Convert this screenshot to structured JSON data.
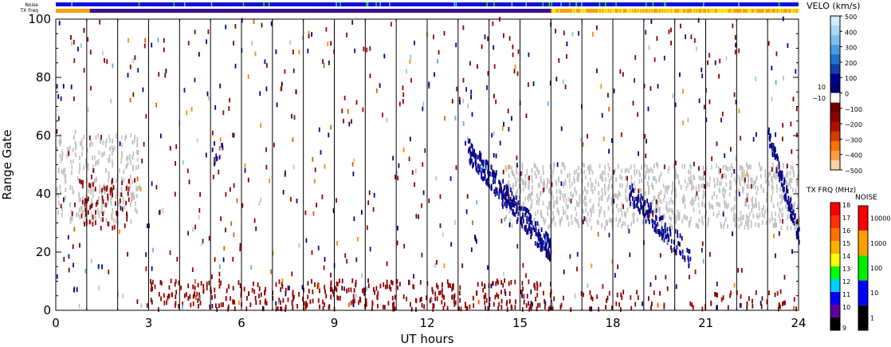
{
  "chart_data": {
    "type": "heatmap",
    "xlabel": "UT hours",
    "ylabel": "Range Gate",
    "x_ticks": [
      0,
      3,
      6,
      9,
      12,
      15,
      18,
      21,
      24
    ],
    "y_ticks": [
      0,
      20,
      40,
      60,
      80,
      100
    ],
    "xlim": [
      0,
      24
    ],
    "ylim": [
      0,
      100
    ],
    "vertical_lines_at_hours": [
      1,
      2,
      3,
      4,
      5,
      6,
      7,
      8,
      9,
      10,
      11,
      12,
      13,
      14,
      15,
      16,
      17,
      18,
      19,
      20,
      21,
      22,
      23
    ],
    "strips": {
      "noise_label": "Noise",
      "txfrq_label": "TX Freq"
    },
    "velocity_colorbar": {
      "title": "VELO (km/s)",
      "ticks": [
        500,
        400,
        300,
        200,
        100,
        10,
        0,
        -10,
        -100,
        -200,
        -300,
        -400,
        -500
      ],
      "tick_labels": [
        "500",
        "400",
        "300",
        "200",
        "100",
        "10",
        "0",
        "−10",
        "−100",
        "−200",
        "−300",
        "−400",
        "−500"
      ],
      "range": [
        -500,
        500
      ]
    },
    "txfreq_colorbar": {
      "title": "TX FRQ (MHz)",
      "tick_labels": [
        "18",
        "17",
        "16",
        "15",
        "14",
        "13",
        "12",
        "11",
        "10",
        "9"
      ]
    },
    "noise_colorbar": {
      "title": "NOISE",
      "tick_labels": [
        "10000",
        "1000",
        "100",
        "10",
        "1"
      ]
    },
    "scatter_regions": [
      {
        "desc": "ground scatter band early",
        "x": [
          0,
          2.7
        ],
        "y": [
          30,
          60
        ],
        "kind": "gray",
        "density": 0.55
      },
      {
        "desc": "negative vel patch",
        "x": [
          0.8,
          2.4
        ],
        "y": [
          28,
          45
        ],
        "kind": "red",
        "density": 0.45
      },
      {
        "desc": "main ground scatter band late",
        "x": [
          14.5,
          24
        ],
        "y": [
          28,
          50
        ],
        "kind": "gray",
        "density": 0.75
      },
      {
        "desc": "near-range negative",
        "x": [
          3,
          16
        ],
        "y": [
          0,
          10
        ],
        "kind": "red",
        "density": 0.5
      },
      {
        "desc": "near-range late",
        "x": [
          16,
          24
        ],
        "y": [
          0,
          6
        ],
        "kind": "red",
        "density": 0.25
      },
      {
        "desc": "descending positive arc",
        "x": [
          13.3,
          16
        ],
        "y": [
          20,
          55
        ],
        "kind": "blue",
        "density": 0.55
      },
      {
        "desc": "descending positive arc late",
        "x": [
          18.5,
          20.5
        ],
        "y": [
          18,
          40
        ],
        "kind": "blue",
        "density": 0.5
      },
      {
        "desc": "blue patch 5h",
        "x": [
          4.8,
          5.4
        ],
        "y": [
          50,
          58
        ],
        "kind": "blue",
        "density": 0.45
      },
      {
        "desc": "blue arc 23h",
        "x": [
          23,
          24
        ],
        "y": [
          25,
          60
        ],
        "kind": "blue",
        "density": 0.5
      }
    ]
  }
}
